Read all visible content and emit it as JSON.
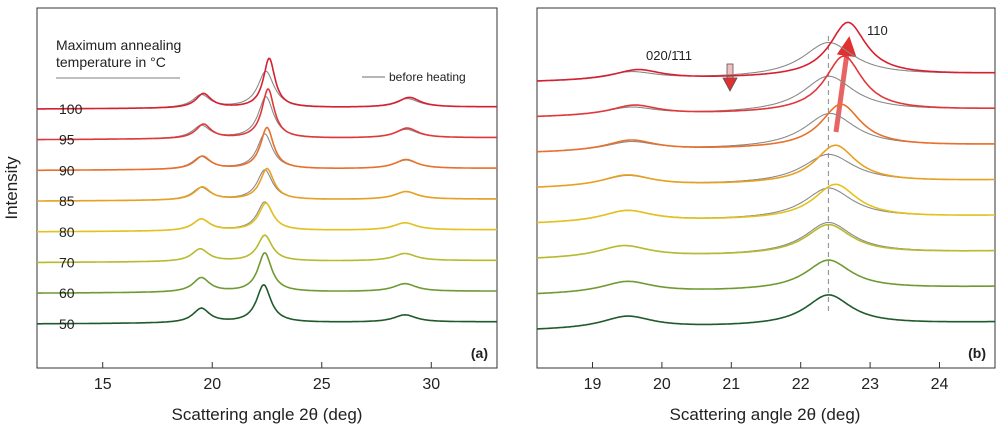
{
  "figure": {
    "ylabel": "Intensity",
    "xlabel": "Scattering angle 2θ (deg)",
    "legend_title_line1": "Maximum annealing",
    "legend_title_line2": "temperature in °C",
    "before_heating_label": "before heating",
    "line_color_before": "#8a8a8a"
  },
  "chart_data": [
    {
      "type": "line",
      "panel_label": "(a)",
      "xlabel": "Scattering angle 2θ (deg)",
      "ylabel": "Intensity",
      "xlim": [
        12,
        33
      ],
      "xticks": [
        15,
        20,
        25,
        30
      ],
      "grid": false,
      "legend": "top-left",
      "series_labels_position": "left",
      "series": [
        {
          "name": "100",
          "color": "#d62030",
          "has_before": true,
          "peaks": [
            {
              "x": 19.6,
              "h": 0.55,
              "w": 0.42
            },
            {
              "x": 22.6,
              "h": 1.9,
              "w": 0.32
            },
            {
              "x": 29.0,
              "h": 0.38,
              "w": 0.6
            }
          ],
          "before_peaks": [
            {
              "x": 19.5,
              "h": 0.5,
              "w": 0.48
            },
            {
              "x": 22.45,
              "h": 1.4,
              "w": 0.45
            },
            {
              "x": 28.9,
              "h": 0.33,
              "w": 0.65
            }
          ]
        },
        {
          "name": "95",
          "color": "#e0383a",
          "has_before": true,
          "peaks": [
            {
              "x": 19.6,
              "h": 0.55,
              "w": 0.42
            },
            {
              "x": 22.55,
              "h": 1.9,
              "w": 0.34
            },
            {
              "x": 28.9,
              "h": 0.38,
              "w": 0.6
            }
          ],
          "before_peaks": [
            {
              "x": 19.5,
              "h": 0.5,
              "w": 0.48
            },
            {
              "x": 22.45,
              "h": 1.6,
              "w": 0.42
            },
            {
              "x": 28.85,
              "h": 0.33,
              "w": 0.65
            }
          ]
        },
        {
          "name": "90",
          "color": "#e8702a",
          "has_before": true,
          "peaks": [
            {
              "x": 19.55,
              "h": 0.5,
              "w": 0.45
            },
            {
              "x": 22.5,
              "h": 1.6,
              "w": 0.36
            },
            {
              "x": 28.85,
              "h": 0.35,
              "w": 0.62
            }
          ],
          "before_peaks": [
            {
              "x": 19.5,
              "h": 0.48,
              "w": 0.48
            },
            {
              "x": 22.4,
              "h": 1.35,
              "w": 0.42
            },
            {
              "x": 28.85,
              "h": 0.33,
              "w": 0.65
            }
          ]
        },
        {
          "name": "85",
          "color": "#e9a020",
          "has_before": true,
          "peaks": [
            {
              "x": 19.55,
              "h": 0.5,
              "w": 0.45
            },
            {
              "x": 22.5,
              "h": 1.2,
              "w": 0.38
            },
            {
              "x": 28.85,
              "h": 0.3,
              "w": 0.62
            }
          ],
          "before_peaks": [
            {
              "x": 19.5,
              "h": 0.48,
              "w": 0.48
            },
            {
              "x": 22.4,
              "h": 1.15,
              "w": 0.42
            },
            {
              "x": 28.85,
              "h": 0.3,
              "w": 0.65
            }
          ]
        },
        {
          "name": "80",
          "color": "#e4c21e",
          "has_before": true,
          "peaks": [
            {
              "x": 19.5,
              "h": 0.45,
              "w": 0.46
            },
            {
              "x": 22.45,
              "h": 1.05,
              "w": 0.4
            },
            {
              "x": 28.8,
              "h": 0.28,
              "w": 0.62
            }
          ],
          "before_peaks": [
            {
              "x": 19.5,
              "h": 0.45,
              "w": 0.48
            },
            {
              "x": 22.4,
              "h": 1.1,
              "w": 0.42
            },
            {
              "x": 28.8,
              "h": 0.28,
              "w": 0.65
            }
          ]
        },
        {
          "name": "70",
          "color": "#b8ba2e",
          "has_before": false,
          "peaks": [
            {
              "x": 19.45,
              "h": 0.48,
              "w": 0.46
            },
            {
              "x": 22.4,
              "h": 1.0,
              "w": 0.4
            },
            {
              "x": 28.8,
              "h": 0.28,
              "w": 0.62
            }
          ],
          "before_peaks": []
        },
        {
          "name": "60",
          "color": "#6f9a32",
          "has_before": false,
          "peaks": [
            {
              "x": 19.5,
              "h": 0.55,
              "w": 0.46
            },
            {
              "x": 22.4,
              "h": 1.5,
              "w": 0.38
            },
            {
              "x": 28.8,
              "h": 0.3,
              "w": 0.62
            }
          ],
          "before_peaks": []
        },
        {
          "name": "50",
          "color": "#1f5a2c",
          "has_before": false,
          "peaks": [
            {
              "x": 19.5,
              "h": 0.55,
              "w": 0.46
            },
            {
              "x": 22.35,
              "h": 1.45,
              "w": 0.4
            },
            {
              "x": 28.8,
              "h": 0.28,
              "w": 0.62
            }
          ],
          "before_peaks": []
        }
      ]
    },
    {
      "type": "line",
      "panel_label": "(b)",
      "xlabel": "Scattering angle 2θ (deg)",
      "xlim": [
        18.2,
        24.8
      ],
      "xticks": [
        19,
        20,
        21,
        22,
        23,
        24
      ],
      "grid": false,
      "reference_line_x": 22.4,
      "annotations": [
        {
          "text": "020/1̄11",
          "x": 20.0
        },
        {
          "text": "110",
          "x": 23.0
        }
      ],
      "series": [
        {
          "name": "100",
          "color": "#d62030",
          "has_before": true,
          "peaks": [
            {
              "x": 19.65,
              "h": 0.28,
              "w": 0.42
            },
            {
              "x": 22.68,
              "h": 1.5,
              "w": 0.32
            }
          ],
          "before_peaks": [
            {
              "x": 19.55,
              "h": 0.22,
              "w": 0.45
            },
            {
              "x": 22.4,
              "h": 0.95,
              "w": 0.45
            }
          ]
        },
        {
          "name": "95",
          "color": "#e0383a",
          "has_before": true,
          "peaks": [
            {
              "x": 19.6,
              "h": 0.28,
              "w": 0.42
            },
            {
              "x": 22.62,
              "h": 1.55,
              "w": 0.33
            }
          ],
          "before_peaks": [
            {
              "x": 19.55,
              "h": 0.22,
              "w": 0.45
            },
            {
              "x": 22.4,
              "h": 1.0,
              "w": 0.45
            }
          ]
        },
        {
          "name": "90",
          "color": "#e8702a",
          "has_before": true,
          "peaks": [
            {
              "x": 19.55,
              "h": 0.3,
              "w": 0.43
            },
            {
              "x": 22.58,
              "h": 1.2,
              "w": 0.35
            }
          ],
          "before_peaks": [
            {
              "x": 19.55,
              "h": 0.25,
              "w": 0.45
            },
            {
              "x": 22.42,
              "h": 0.95,
              "w": 0.45
            }
          ]
        },
        {
          "name": "85",
          "color": "#e9a020",
          "has_before": true,
          "peaks": [
            {
              "x": 19.5,
              "h": 0.32,
              "w": 0.44
            },
            {
              "x": 22.5,
              "h": 1.05,
              "w": 0.36
            }
          ],
          "before_peaks": [
            {
              "x": 19.5,
              "h": 0.3,
              "w": 0.45
            },
            {
              "x": 22.4,
              "h": 0.8,
              "w": 0.45
            }
          ]
        },
        {
          "name": "80",
          "color": "#e4c21e",
          "has_before": true,
          "peaks": [
            {
              "x": 19.5,
              "h": 0.32,
              "w": 0.44
            },
            {
              "x": 22.5,
              "h": 0.95,
              "w": 0.38
            }
          ],
          "before_peaks": [
            {
              "x": 19.5,
              "h": 0.32,
              "w": 0.45
            },
            {
              "x": 22.4,
              "h": 0.85,
              "w": 0.42
            }
          ]
        },
        {
          "name": "70",
          "color": "#b8ba2e",
          "has_before": true,
          "peaks": [
            {
              "x": 19.45,
              "h": 0.33,
              "w": 0.45
            },
            {
              "x": 22.4,
              "h": 0.82,
              "w": 0.4
            }
          ],
          "before_peaks": [
            {
              "x": 19.45,
              "h": 0.33,
              "w": 0.45
            },
            {
              "x": 22.4,
              "h": 0.88,
              "w": 0.42
            }
          ]
        },
        {
          "name": "60",
          "color": "#6f9a32",
          "has_before": false,
          "peaks": [
            {
              "x": 19.5,
              "h": 0.32,
              "w": 0.45
            },
            {
              "x": 22.4,
              "h": 0.82,
              "w": 0.4
            }
          ],
          "before_peaks": []
        },
        {
          "name": "50",
          "color": "#1f5a2c",
          "has_before": false,
          "peaks": [
            {
              "x": 19.5,
              "h": 0.34,
              "w": 0.45
            },
            {
              "x": 22.4,
              "h": 0.84,
              "w": 0.4
            }
          ],
          "before_peaks": []
        }
      ]
    }
  ]
}
